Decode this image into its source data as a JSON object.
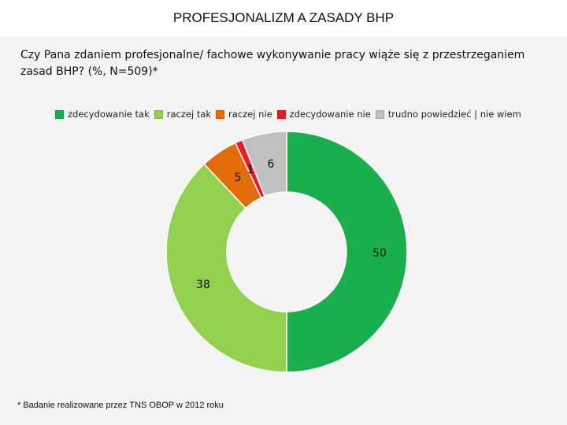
{
  "title": "PROFESJONALIZM A ZASADY BHP",
  "question": "Czy Pana zdaniem profesjonalne/ fachowe wykonywanie pracy wiąże się z przestrzeganiem zasad BHP? (%, N=509)*",
  "footnote": "* Badanie realizowane przez TNS OBOP w 2012 roku",
  "legend": [
    {
      "label": "zdecydowanie tak",
      "color": "#1aae4c"
    },
    {
      "label": "raczej tak",
      "color": "#92d050"
    },
    {
      "label": "raczej nie",
      "color": "#e36c0a"
    },
    {
      "label": "zdecydowanie nie",
      "color": "#e81c24"
    },
    {
      "label": "trudno powiedzieć | nie wiem",
      "color": "#c0c0c0"
    }
  ],
  "chart_data": {
    "type": "pie",
    "donut": true,
    "categories": [
      "zdecydowanie tak",
      "raczej tak",
      "raczej nie",
      "zdecydowanie nie",
      "trudno powiedzieć | nie wiem"
    ],
    "values": [
      50,
      38,
      5,
      1,
      6
    ],
    "data_labels": [
      "50",
      "38",
      "5",
      "1",
      "6"
    ],
    "colors": [
      "#1aae4c",
      "#92d050",
      "#e36c0a",
      "#e81c24",
      "#c0c0c0"
    ],
    "legend_position": "top"
  }
}
